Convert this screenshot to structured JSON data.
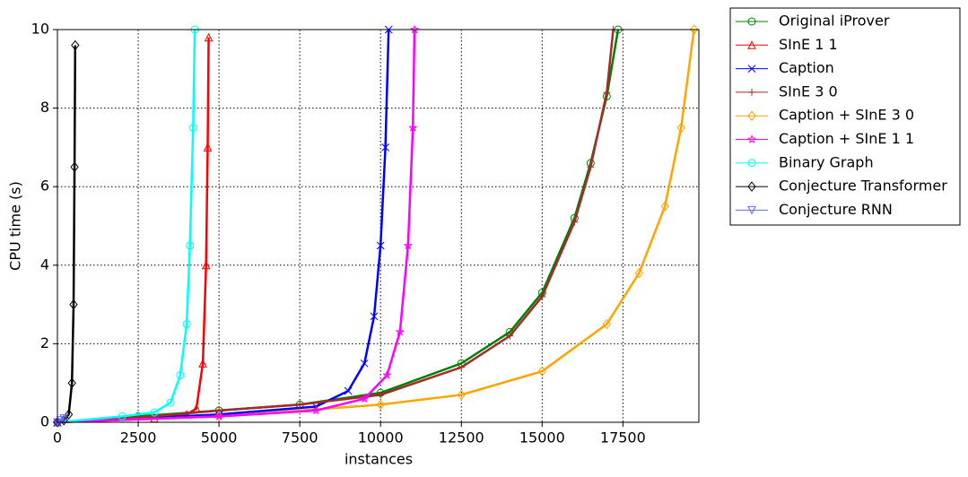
{
  "chart_data": {
    "type": "line",
    "x_label": "instances",
    "y_label": "CPU time (s)",
    "xlim": [
      0,
      19850
    ],
    "ylim": [
      0,
      10
    ],
    "xticks": [
      0,
      2500,
      5000,
      7500,
      10000,
      12500,
      15000,
      17500
    ],
    "yticks": [
      0,
      2,
      4,
      6,
      8,
      10
    ],
    "grid": true,
    "legend": "outside-right",
    "series": [
      {
        "name": "Original iProver",
        "color": "#008000",
        "marker": "circle",
        "x": [
          0,
          2500,
          5000,
          7500,
          10000,
          12500,
          14000,
          15000,
          16000,
          16500,
          17000,
          17350
        ],
        "values": [
          0,
          0.15,
          0.3,
          0.45,
          0.75,
          1.5,
          2.3,
          3.3,
          5.2,
          6.6,
          8.3,
          10
        ]
      },
      {
        "name": "SInE 1 1",
        "color": "#ff0000",
        "marker": "triangle-up",
        "x": [
          0,
          3000,
          4000,
          4300,
          4500,
          4600,
          4650,
          4680
        ],
        "values": [
          0,
          0.1,
          0.2,
          0.35,
          1.5,
          4,
          7,
          9.8
        ]
      },
      {
        "name": "Caption",
        "color": "#0000ff",
        "marker": "x",
        "x": [
          0,
          5000,
          8000,
          9000,
          9500,
          9800,
          10000,
          10150,
          10250
        ],
        "values": [
          0,
          0.2,
          0.4,
          0.8,
          1.5,
          2.7,
          4.5,
          7,
          10
        ]
      },
      {
        "name": "SInE 3 0",
        "color": "#a52a2a",
        "marker": "plus",
        "x": [
          0,
          2500,
          5000,
          7500,
          10000,
          12500,
          14000,
          15000,
          16000,
          16500,
          17000,
          17200
        ],
        "values": [
          0,
          0.12,
          0.3,
          0.45,
          0.7,
          1.4,
          2.2,
          3.2,
          5.1,
          6.5,
          8.4,
          10
        ]
      },
      {
        "name": "Caption + SInE 3 0",
        "color": "#ffa500",
        "marker": "diamond",
        "x": [
          0,
          5000,
          10000,
          12500,
          15000,
          17000,
          18000,
          18800,
          19300,
          19700
        ],
        "values": [
          0,
          0.15,
          0.45,
          0.7,
          1.3,
          2.5,
          3.8,
          5.5,
          7.5,
          10
        ]
      },
      {
        "name": "Caption + SInE 1 1",
        "color": "#ff00ff",
        "marker": "star",
        "x": [
          0,
          5000,
          8000,
          9500,
          10200,
          10600,
          10850,
          11000,
          11050
        ],
        "values": [
          0,
          0.15,
          0.3,
          0.6,
          1.2,
          2.3,
          4.5,
          7.5,
          10
        ]
      },
      {
        "name": "Binary Graph",
        "color": "#00ffff",
        "marker": "circle",
        "x": [
          0,
          2000,
          3000,
          3500,
          3800,
          4000,
          4100,
          4200,
          4250
        ],
        "values": [
          0,
          0.15,
          0.25,
          0.5,
          1.2,
          2.5,
          4.5,
          7.5,
          10
        ]
      },
      {
        "name": "Conjecture Transformer",
        "color": "#000000",
        "marker": "diamond",
        "x": [
          0,
          200,
          350,
          450,
          500,
          530,
          550
        ],
        "values": [
          0,
          0.05,
          0.2,
          1,
          3,
          6.5,
          9.6
        ]
      },
      {
        "name": "Conjecture RNN",
        "color": "#6464ff",
        "marker": "triangle-down",
        "x": [
          0,
          100,
          200
        ],
        "values": [
          0,
          0.05,
          0.1
        ]
      }
    ]
  }
}
